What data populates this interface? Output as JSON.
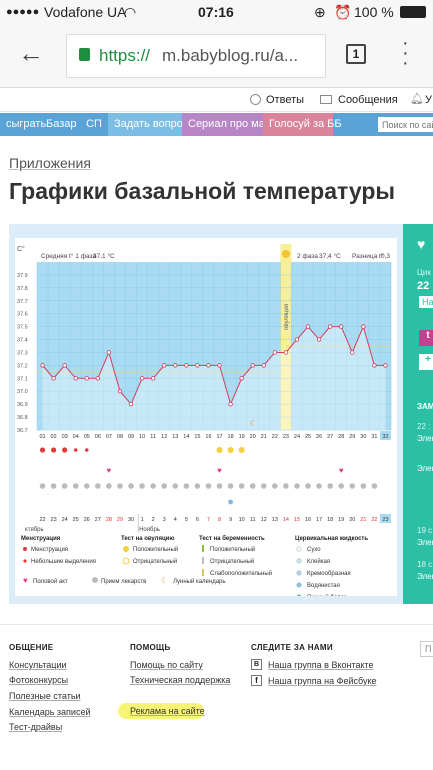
{
  "status": {
    "carrier": "Vodafone UA",
    "time": "07:16",
    "battery": "100 %"
  },
  "browser": {
    "url_scheme": "https://",
    "url_rest": "m.babyblog.ru/a...",
    "tab_count": "1"
  },
  "top": {
    "answers": "Ответы",
    "messages": "Сообщения",
    "more": "У"
  },
  "nav": {
    "items": [
      "сыграть",
      "Базар",
      "СП",
      "Задать вопрос",
      "Сериал про мам",
      "Голосуй за ББ"
    ],
    "search_placeholder": "Поиск по сайту"
  },
  "page": {
    "breadcrumb": "Приложения",
    "title": "Графики базальной температуры"
  },
  "chart_header": {
    "unit": "C°",
    "phase1": "Средняя t° 1 фаза",
    "phase1_val": "37,1 °C",
    "phase2": "2 фаза",
    "phase2_val": "37,4 °C",
    "diff": "Разница t°",
    "diff_val": "0,3",
    "ovulation": "овуляция"
  },
  "chart_data": {
    "type": "line",
    "x": [
      "01",
      "02",
      "03",
      "04",
      "05",
      "06",
      "07",
      "08",
      "09",
      "10",
      "11",
      "12",
      "13",
      "14",
      "15",
      "16",
      "17",
      "18",
      "19",
      "20",
      "21",
      "22",
      "23",
      "24",
      "25",
      "26",
      "27",
      "28",
      "29",
      "30",
      "31",
      "32"
    ],
    "y": [
      37.2,
      37.1,
      37.2,
      37.1,
      37.1,
      37.1,
      37.3,
      37.0,
      36.9,
      37.1,
      37.1,
      37.2,
      37.2,
      37.2,
      37.2,
      37.2,
      37.2,
      36.9,
      37.1,
      37.2,
      37.2,
      37.3,
      37.3,
      37.4,
      37.5,
      37.4,
      37.5,
      37.5,
      37.3,
      37.5,
      37.2,
      37.2
    ],
    "yticks": [
      "37.9",
      "37.8",
      "37.7",
      "37.6",
      "37.5",
      "37.4",
      "37.3",
      "37.2",
      "37.1",
      "37.0",
      "36.9",
      "36.8",
      "36.7"
    ],
    "ylim": [
      36.7,
      38.0
    ],
    "ovulation_day": "23",
    "dates_row": [
      "22",
      "23",
      "24",
      "25",
      "26",
      "27",
      "28",
      "29",
      "30",
      "1",
      "2",
      "3",
      "4",
      "5",
      "6",
      "7",
      "8",
      "9",
      "10",
      "11",
      "12",
      "13",
      "14",
      "15",
      "16",
      "17",
      "18",
      "19",
      "20",
      "21",
      "22",
      "23"
    ],
    "red_dates": [
      6,
      7,
      15,
      16,
      22,
      23,
      29,
      30
    ],
    "month1": "ктябрь",
    "month2": "Ноябрь"
  },
  "legend": {
    "menstruation": "Менструация",
    "menstruation_a": "Менструация",
    "menstruation_b": "Небольшие выделения",
    "ovtest": "Тест на овуляцию",
    "ovtest_a": "Положительный",
    "ovtest_b": "Отрицательный",
    "pregtest": "Тест на беременность",
    "pregtest_a": "Положительный",
    "pregtest_b": "Отрицательный",
    "pregtest_c": "Слабоположительный",
    "cervical": "Цервикальная жидкость",
    "cervical_a": "Сухо",
    "cervical_b": "Клейкая",
    "cervical_c": "Кремообразная",
    "cervical_d": "Водянистая",
    "cervical_e": "Яичный белок",
    "sex": "Половой акт",
    "meds": "Прием лекарств",
    "lunar": "Лунный календарь"
  },
  "side": {
    "a": "Цик",
    "b": "22",
    "c": "На",
    "d": "ЗАМ",
    "e": "22 :",
    "f": "Элен",
    "g": "Элен",
    "h": "19 с",
    "i": "Элен",
    "j": "18 с",
    "k": "Элен"
  },
  "footer": {
    "col1_title": "ОБЩЕНИЕ",
    "col1": [
      "Консультации",
      "Фотоконкурсы",
      "Полезные статьи",
      "Календарь записей",
      "Тест-драйвы"
    ],
    "col2_title": "ПОМОЩЬ",
    "col2": [
      "Помощь по сайту",
      "Техническая поддержка",
      "Реклама на сайте"
    ],
    "col3_title": "СЛЕДИТЕ ЗА НАМИ",
    "col3": [
      "Наша группа в Вконтакте",
      "Наша группа на Фейсбуке"
    ],
    "col4": "П"
  }
}
